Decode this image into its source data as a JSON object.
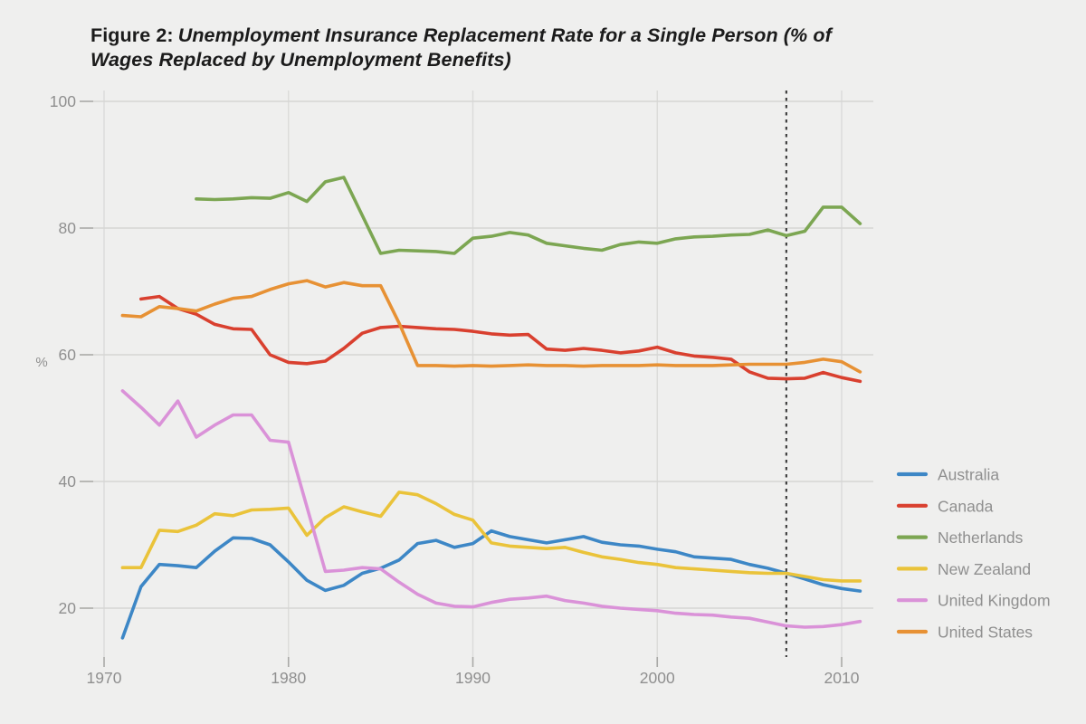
{
  "title": {
    "prefix": "Figure 2:",
    "text": "Unemployment Insurance Replacement Rate for a Single Person (% of Wages Replaced by Unemployment Benefits)"
  },
  "colors": {
    "background": "#efefee",
    "grid_vertical": "#dbdbd9",
    "grid_horizontal": "#d6d6d4",
    "tick": "#a9a9a7",
    "axis_text": "#8f8f8f",
    "legend_text": "#8f8f8f",
    "title_text": "#1b1b1b",
    "annotation_dashed_line": "#414141"
  },
  "chart_data": {
    "type": "line",
    "title": "Figure 2: Unemployment Insurance Replacement Rate for a Single Person (% of Wages Replaced by Unemployment Benefits)",
    "xlabel": "",
    "ylabel": "%",
    "grid": true,
    "legend_position": "right",
    "x_ticks": [
      1970,
      1980,
      1990,
      2000,
      2010
    ],
    "y_ticks": [
      20,
      40,
      60,
      80,
      100
    ],
    "xlim": [
      1969.4,
      2012.4
    ],
    "ylim": [
      12.3,
      101.7
    ],
    "annotation_line": {
      "x": 2007,
      "style": "dashed",
      "label": ""
    },
    "series": [
      {
        "name": "Australia",
        "color": "#3d87c6",
        "start_year": 1971,
        "end_year": 2011,
        "values": [
          15.3,
          23.4,
          26.9,
          26.7,
          26.4,
          29.0,
          31.1,
          31.0,
          30.0,
          27.3,
          24.4,
          22.8,
          23.6,
          25.5,
          26.3,
          27.6,
          30.2,
          30.7,
          29.6,
          30.2,
          32.2,
          31.3,
          30.8,
          30.3,
          30.8,
          31.3,
          30.4,
          30.0,
          29.8,
          29.3,
          28.9,
          28.1,
          27.9,
          27.7,
          26.9,
          26.3,
          25.5,
          24.6,
          23.7,
          23.1,
          22.7
        ]
      },
      {
        "name": "Canada",
        "color": "#d9402f",
        "start_year": 1972,
        "end_year": 2011,
        "values": [
          68.8,
          69.2,
          67.3,
          66.4,
          64.8,
          64.1,
          64.0,
          60.0,
          58.8,
          58.6,
          59.0,
          61.0,
          63.4,
          64.3,
          64.5,
          64.3,
          64.1,
          64.0,
          63.7,
          63.3,
          63.1,
          63.2,
          60.9,
          60.7,
          61.0,
          60.7,
          60.3,
          60.6,
          61.2,
          60.3,
          59.8,
          59.6,
          59.3,
          57.3,
          56.3,
          56.2,
          56.3,
          57.2,
          56.4,
          55.8
        ]
      },
      {
        "name": "Netherlands",
        "color": "#7ca652",
        "start_year": 1975,
        "end_year": 2011,
        "values": [
          84.6,
          84.5,
          84.6,
          84.8,
          84.7,
          85.6,
          84.2,
          87.3,
          88.0,
          82.0,
          76.0,
          76.5,
          76.4,
          76.3,
          76.0,
          78.4,
          78.7,
          79.3,
          78.9,
          77.6,
          77.2,
          76.8,
          76.5,
          77.4,
          77.8,
          77.6,
          78.3,
          78.6,
          78.7,
          78.9,
          79.0,
          79.7,
          78.8,
          79.5,
          83.3,
          83.3,
          80.7
        ]
      },
      {
        "name": "New Zealand",
        "color": "#eac33a",
        "start_year": 1971,
        "end_year": 2011,
        "values": [
          26.4,
          26.4,
          32.3,
          32.1,
          33.1,
          34.9,
          34.6,
          35.5,
          35.6,
          35.8,
          31.5,
          34.3,
          36.0,
          35.2,
          34.5,
          38.3,
          37.9,
          36.5,
          34.8,
          33.9,
          30.3,
          29.8,
          29.6,
          29.4,
          29.6,
          28.8,
          28.1,
          27.7,
          27.2,
          26.9,
          26.4,
          26.2,
          26.0,
          25.8,
          25.6,
          25.5,
          25.5,
          25.0,
          24.5,
          24.3,
          24.3
        ]
      },
      {
        "name": "United Kingdom",
        "color": "#da92d8",
        "start_year": 1971,
        "end_year": 2011,
        "values": [
          54.3,
          51.7,
          48.9,
          52.7,
          47.0,
          48.9,
          50.5,
          50.5,
          46.5,
          46.2,
          36.0,
          25.8,
          26.0,
          26.4,
          26.2,
          24.1,
          22.2,
          20.8,
          20.3,
          20.2,
          20.9,
          21.4,
          21.6,
          21.9,
          21.2,
          20.8,
          20.3,
          20.0,
          19.8,
          19.6,
          19.2,
          19.0,
          18.9,
          18.6,
          18.4,
          17.8,
          17.2,
          17.0,
          17.1,
          17.4,
          17.9
        ]
      },
      {
        "name": "United States",
        "color": "#e79134",
        "start_year": 1971,
        "end_year": 2011,
        "values": [
          66.2,
          66.0,
          67.6,
          67.3,
          66.9,
          68.0,
          68.9,
          69.2,
          70.3,
          71.2,
          71.7,
          70.7,
          71.4,
          70.9,
          70.9,
          65.0,
          58.3,
          58.3,
          58.2,
          58.3,
          58.2,
          58.3,
          58.4,
          58.3,
          58.3,
          58.2,
          58.3,
          58.3,
          58.3,
          58.4,
          58.3,
          58.3,
          58.3,
          58.4,
          58.5,
          58.5,
          58.5,
          58.8,
          59.3,
          58.9,
          57.3
        ]
      }
    ]
  }
}
